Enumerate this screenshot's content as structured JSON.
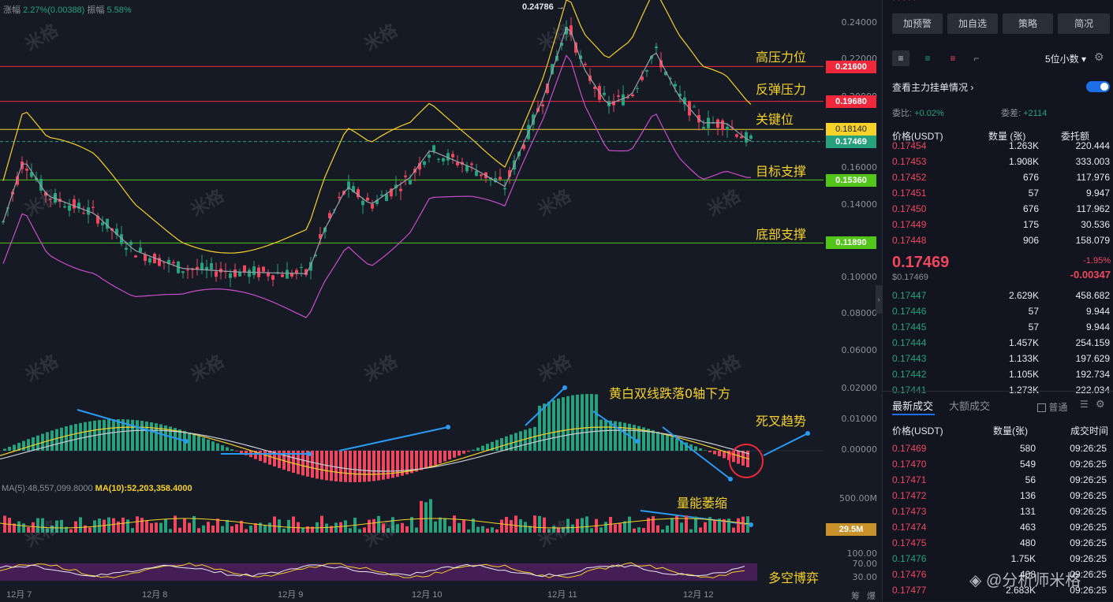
{
  "header": {
    "change_label": "涨幅",
    "change_value": "2.27%(0.00388)",
    "amplitude_label": "振幅",
    "amplitude_value": "5.58%"
  },
  "price_axis": [
    "0.24000",
    "0.22000",
    "0.20000",
    "0.16000",
    "0.14000",
    "0.10000",
    "0.08000",
    "0.06000",
    "0.02000",
    "0.01000",
    "0.00000",
    "500.00M",
    "100.00",
    "70.00",
    "30.00"
  ],
  "levels": [
    {
      "label": "0.21600",
      "text": "高压力位",
      "color": "#f0283c"
    },
    {
      "label": "0.19680",
      "text": "反弹压力",
      "color": "#f0283c"
    },
    {
      "label": "0.18140",
      "text": "关键位",
      "color": "#f5d12a"
    },
    {
      "label": "0.17469",
      "text": "",
      "color": "#26a17b"
    },
    {
      "label": "0.15360",
      "text": "目标支撑",
      "color": "#52c41a"
    },
    {
      "label": "0.11890",
      "text": "底部支撑",
      "color": "#52c41a"
    }
  ],
  "peak_label": "0.24786",
  "annotations": {
    "macd_cross": "黄白双线跌落0轴下方",
    "death_cross": "死叉趋势",
    "volume_shrink": "量能萎缩",
    "long_short": "多空博弈"
  },
  "volume": {
    "ma5": "MA(5):48,557,099.8000",
    "ma10": "MA(10):52,203,358.4000",
    "current": "29.5M"
  },
  "dates": [
    "12月 7",
    "12月 8",
    "12月 9",
    "12月 10",
    "12月 11",
    "12月 12"
  ],
  "axis_corner": [
    "筹",
    "爆"
  ],
  "watermark": "米格",
  "sidebar": {
    "buttons": [
      "加预警",
      "加自选",
      "策略",
      "简况"
    ],
    "decimal_select": "5位小数",
    "orderbook_link": "查看主力挂单情况",
    "commission_ratio_label": "委比:",
    "commission_ratio_value": "+0.02%",
    "commission_diff_label": "委差:",
    "commission_diff_value": "+2114",
    "columns": [
      "价格(USDT)",
      "数量 (张)",
      "委托额"
    ],
    "asks": [
      {
        "price": "0.17454",
        "qty": "1.263K",
        "amount": "220.444"
      },
      {
        "price": "0.17453",
        "qty": "1.908K",
        "amount": "333.003"
      },
      {
        "price": "0.17452",
        "qty": "676",
        "amount": "117.976"
      },
      {
        "price": "0.17451",
        "qty": "57",
        "amount": "9.947"
      },
      {
        "price": "0.17450",
        "qty": "676",
        "amount": "117.962"
      },
      {
        "price": "0.17449",
        "qty": "175",
        "amount": "30.536"
      },
      {
        "price": "0.17448",
        "qty": "906",
        "amount": "158.079"
      }
    ],
    "last_price": "0.17469",
    "last_price_usd": "$0.17469",
    "change_pct": "-1.95%",
    "change_abs": "-0.00347",
    "bids": [
      {
        "price": "0.17447",
        "qty": "2.629K",
        "amount": "458.682"
      },
      {
        "price": "0.17446",
        "qty": "57",
        "amount": "9.944"
      },
      {
        "price": "0.17445",
        "qty": "57",
        "amount": "9.944"
      },
      {
        "price": "0.17444",
        "qty": "1.457K",
        "amount": "254.159"
      },
      {
        "price": "0.17443",
        "qty": "1.133K",
        "amount": "197.629"
      },
      {
        "price": "0.17442",
        "qty": "1.105K",
        "amount": "192.734"
      },
      {
        "price": "0.17441",
        "qty": "1.273K",
        "amount": "222.034"
      }
    ],
    "trades_tabs": [
      "最新成交",
      "大额成交"
    ],
    "trades_checkbox": "普通",
    "trades_columns": [
      "价格(USDT)",
      "数量(张)",
      "成交时间"
    ],
    "trades": [
      {
        "price": "0.17469",
        "qty": "580",
        "time": "09:26:25",
        "side": "sell"
      },
      {
        "price": "0.17470",
        "qty": "549",
        "time": "09:26:25",
        "side": "sell"
      },
      {
        "price": "0.17471",
        "qty": "56",
        "time": "09:26:25",
        "side": "sell"
      },
      {
        "price": "0.17472",
        "qty": "136",
        "time": "09:26:25",
        "side": "sell"
      },
      {
        "price": "0.17473",
        "qty": "131",
        "time": "09:26:25",
        "side": "sell"
      },
      {
        "price": "0.17474",
        "qty": "463",
        "time": "09:26:25",
        "side": "sell"
      },
      {
        "price": "0.17475",
        "qty": "480",
        "time": "09:26:25",
        "side": "sell"
      },
      {
        "price": "0.17476",
        "qty": "1.75K",
        "time": "09:26:25",
        "side": "buy"
      },
      {
        "price": "0.17476",
        "qty": "408",
        "time": "09:26:25",
        "side": "sell"
      },
      {
        "price": "0.17477",
        "qty": "2.683K",
        "time": "09:26:25",
        "side": "sell"
      }
    ],
    "source_mark": "分析师米格"
  }
}
